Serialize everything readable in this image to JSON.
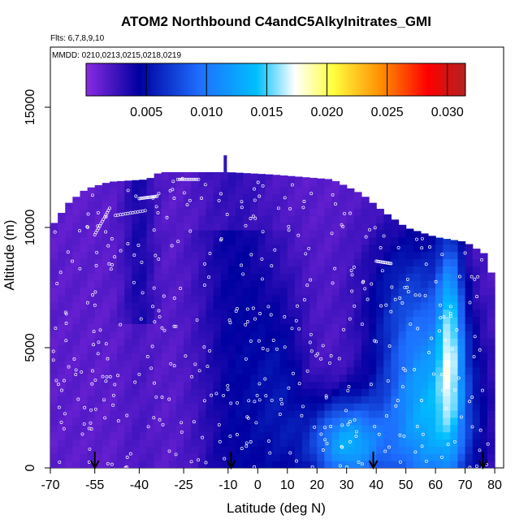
{
  "chart_data": {
    "type": "heatmap",
    "title": "ATOM2 Northbound C4andC5Alkylnitrates_GMI",
    "flights_text": "Flts: 6,7,8,9,10",
    "dates_text": "MMDD: 0210,0213,0215,0218,0219",
    "xlabel": "Latitude (deg N)",
    "ylabel": "Altitude (m)",
    "xlim": [
      -70,
      83
    ],
    "ylim": [
      0,
      17500
    ],
    "x_ticks": [
      -70,
      -55,
      -40,
      -25,
      -10,
      0,
      10,
      20,
      30,
      40,
      50,
      60,
      70,
      80
    ],
    "x_tick_labels": [
      "-70",
      "-55",
      "-40",
      "-25",
      "-10",
      "0",
      "10",
      "20",
      "30",
      "40",
      "50",
      "60",
      "70",
      "80"
    ],
    "y_ticks": [
      0,
      5000,
      10000,
      15000
    ],
    "y_tick_labels": [
      "0",
      "5000",
      "10000",
      "15000"
    ],
    "colorbar": {
      "min": 0.0,
      "max": 0.0315,
      "ticks": [
        0.005,
        0.01,
        0.015,
        0.02,
        0.025,
        0.03
      ],
      "tick_labels": [
        "0.005",
        "0.010",
        "0.015",
        "0.020",
        "0.025",
        "0.030"
      ],
      "colors": [
        "#8a2be2",
        "#00008b",
        "#1e90ff",
        "#00bfff",
        "#ffffff",
        "#ffff00",
        "#ffa500",
        "#ff0000",
        "#b22222"
      ]
    },
    "curtain_top_altitude": [
      {
        "lat": -70,
        "alt": 10000
      },
      {
        "lat": -68,
        "alt": 10300
      },
      {
        "lat": -64,
        "alt": 11000
      },
      {
        "lat": -58,
        "alt": 11600
      },
      {
        "lat": -50,
        "alt": 11900
      },
      {
        "lat": -37,
        "alt": 12000
      },
      {
        "lat": -33,
        "alt": 12300
      },
      {
        "lat": -10,
        "alt": 12300
      },
      {
        "lat": 5,
        "alt": 12200
      },
      {
        "lat": 25,
        "alt": 12000
      },
      {
        "lat": 35,
        "alt": 11400
      },
      {
        "lat": 42,
        "alt": 10700
      },
      {
        "lat": 50,
        "alt": 10000
      },
      {
        "lat": 60,
        "alt": 9600
      },
      {
        "lat": 70,
        "alt": 9400
      },
      {
        "lat": 78,
        "alt": 8800
      },
      {
        "lat": 80,
        "alt": 7000
      }
    ],
    "arrows_lat": [
      -55,
      -9,
      39,
      76
    ]
  }
}
